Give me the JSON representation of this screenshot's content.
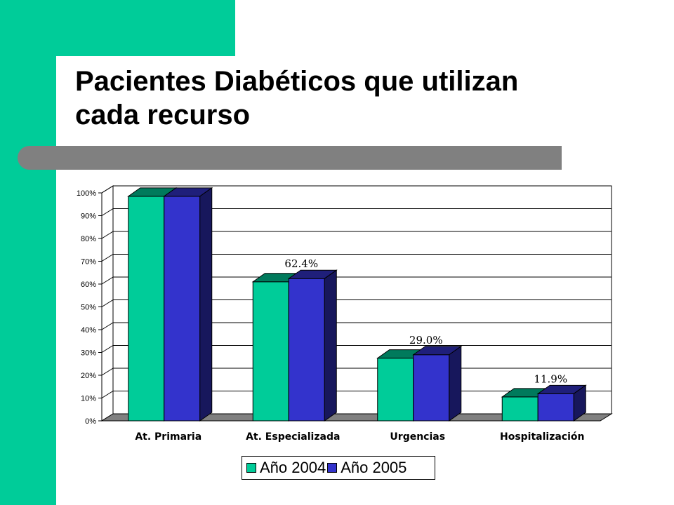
{
  "slide": {
    "title_line1": "Pacientes Diabéticos que utilizan",
    "title_line2": "cada recurso",
    "accent_color": "#00CC99",
    "rule_color": "#808080"
  },
  "chart_data": {
    "type": "bar",
    "title": "",
    "xlabel": "",
    "ylabel": "",
    "categories": [
      "At. Primaria",
      "At. Especializada",
      "Urgencias",
      "Hospitalización"
    ],
    "series": [
      {
        "name": "Año 2004",
        "values": [
          98.5,
          61.0,
          27.5,
          10.5
        ],
        "color": "#00CC99"
      },
      {
        "name": "Año 2005",
        "values": [
          98.5,
          62.4,
          29.0,
          11.9
        ],
        "color": "#3333CC"
      }
    ],
    "data_labels": [
      "",
      "62.4%",
      "29.0%",
      "11.9%"
    ],
    "ylim": [
      0,
      100
    ],
    "yticks": [
      "0%",
      "10%",
      "20%",
      "30%",
      "40%",
      "50%",
      "60%",
      "70%",
      "80%",
      "90%",
      "100%"
    ],
    "grid": true,
    "legend_position": "bottom"
  }
}
